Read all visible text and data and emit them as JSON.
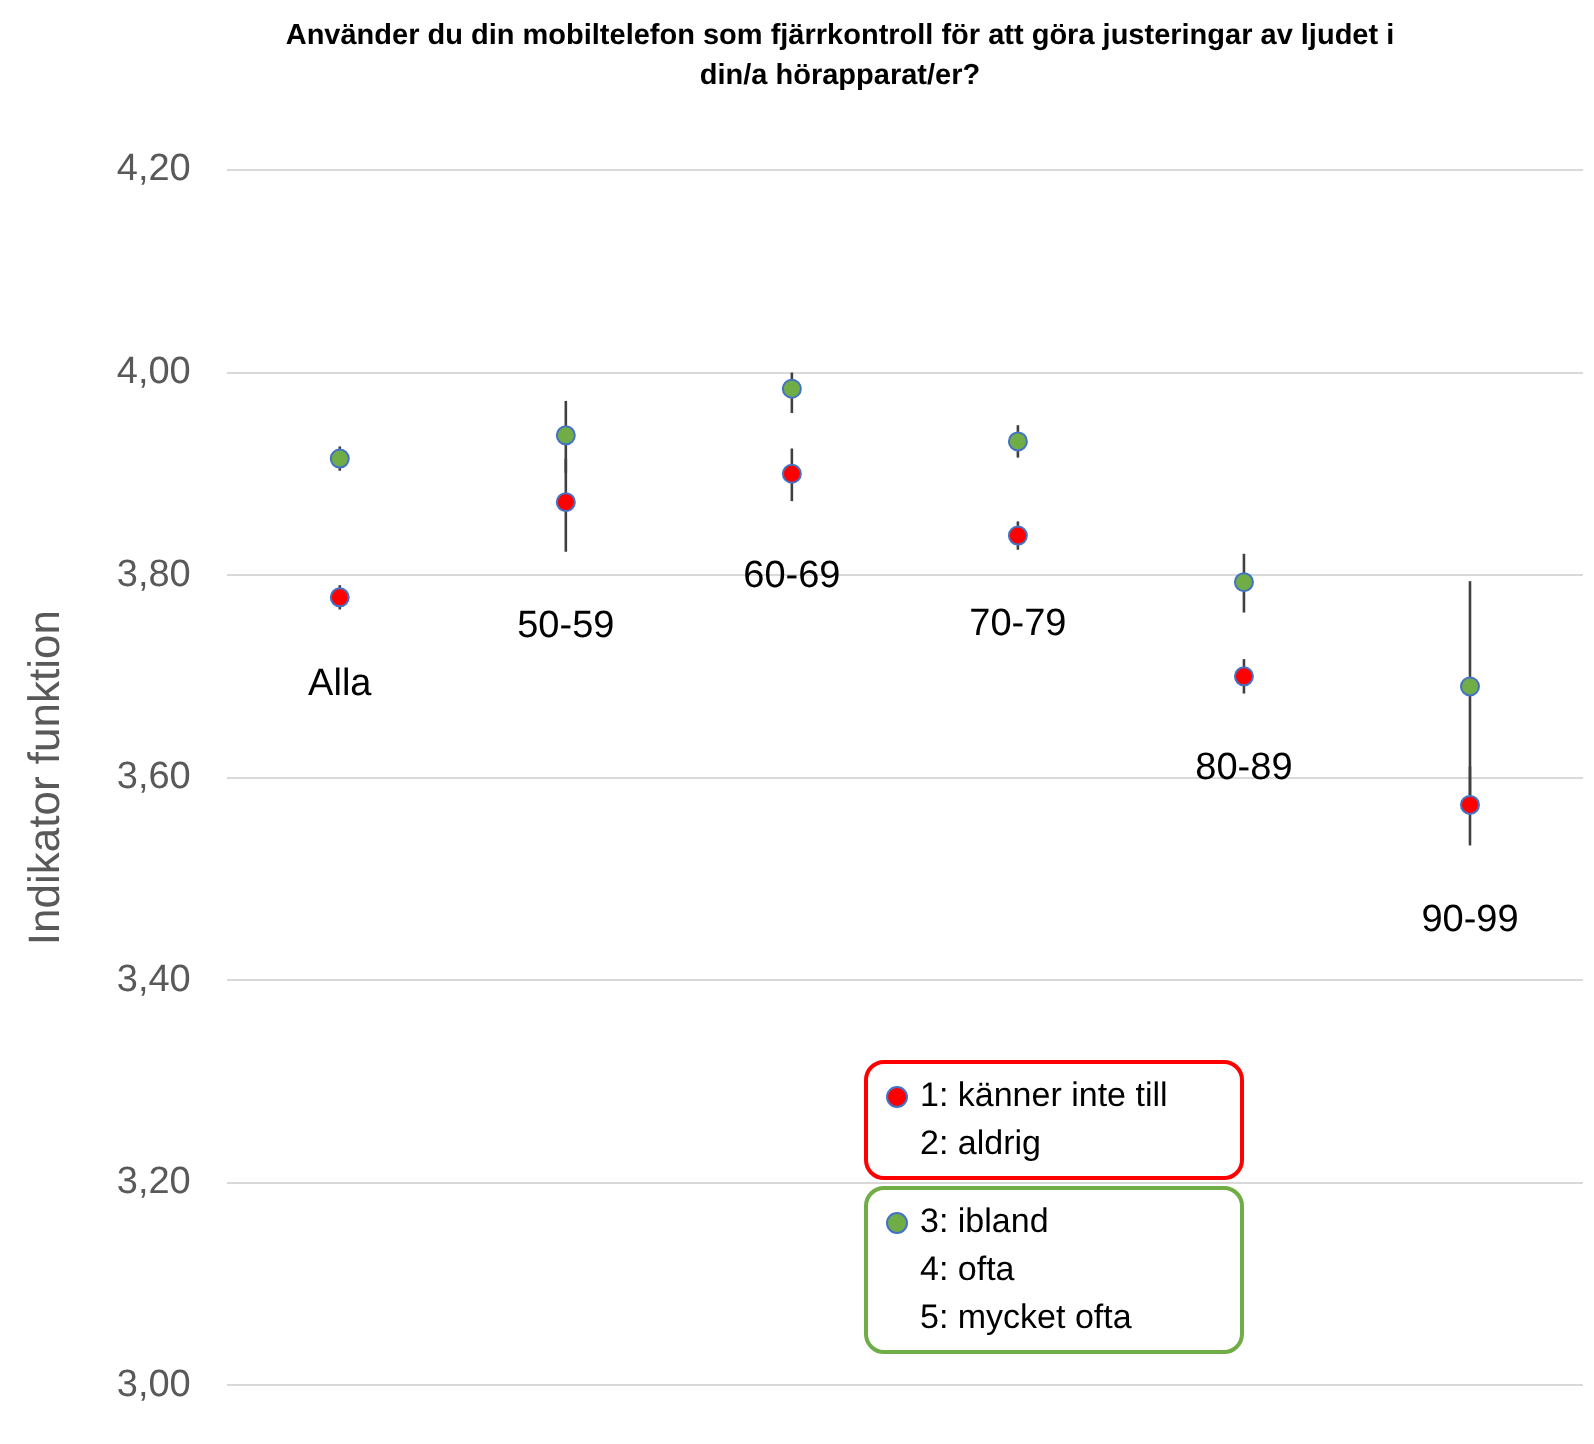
{
  "chart_data": {
    "type": "scatter",
    "title": "Använder du din mobiltelefon som fjärrkontroll för att göra justeringar av ljudet i din/a hörapparat/er?",
    "ylabel": "Indikator funktion",
    "categories": [
      "Alla",
      "50-59",
      "60-69",
      "70-79",
      "80-89",
      "90-99"
    ],
    "series": [
      {
        "name": "3: ibland\n4: ofta\n5: mycket ofta",
        "color": "#70ad47",
        "values": [
          3.915,
          3.938,
          3.984,
          3.932,
          3.793,
          3.69
        ],
        "errors": [
          [
            3.903,
            3.927
          ],
          [
            3.901,
            3.972
          ],
          [
            3.96,
            4.0
          ],
          [
            3.916,
            3.948
          ],
          [
            3.763,
            3.821
          ],
          [
            3.57,
            3.794
          ]
        ]
      },
      {
        "name": "1: känner inte till\n2: aldrig",
        "color": "#ff0000",
        "values": [
          3.778,
          3.872,
          3.9,
          3.839,
          3.7,
          3.573
        ],
        "errors": [
          [
            3.766,
            3.79
          ],
          [
            3.823,
            3.915
          ],
          [
            3.873,
            3.925
          ],
          [
            3.825,
            3.853
          ],
          [
            3.683,
            3.717
          ],
          [
            3.533,
            3.611
          ]
        ]
      }
    ],
    "ylim": [
      3.0,
      4.2
    ],
    "yticks": [
      {
        "value": 3.0,
        "label": "3,00"
      },
      {
        "value": 3.2,
        "label": "3,20"
      },
      {
        "value": 3.4,
        "label": "3,40"
      },
      {
        "value": 3.6,
        "label": "3,60"
      },
      {
        "value": 3.8,
        "label": "3,80"
      },
      {
        "value": 4.0,
        "label": "4,00"
      },
      {
        "value": 4.2,
        "label": "4,20"
      }
    ],
    "grid": "y",
    "legend": "bottom",
    "marker": "circle"
  }
}
